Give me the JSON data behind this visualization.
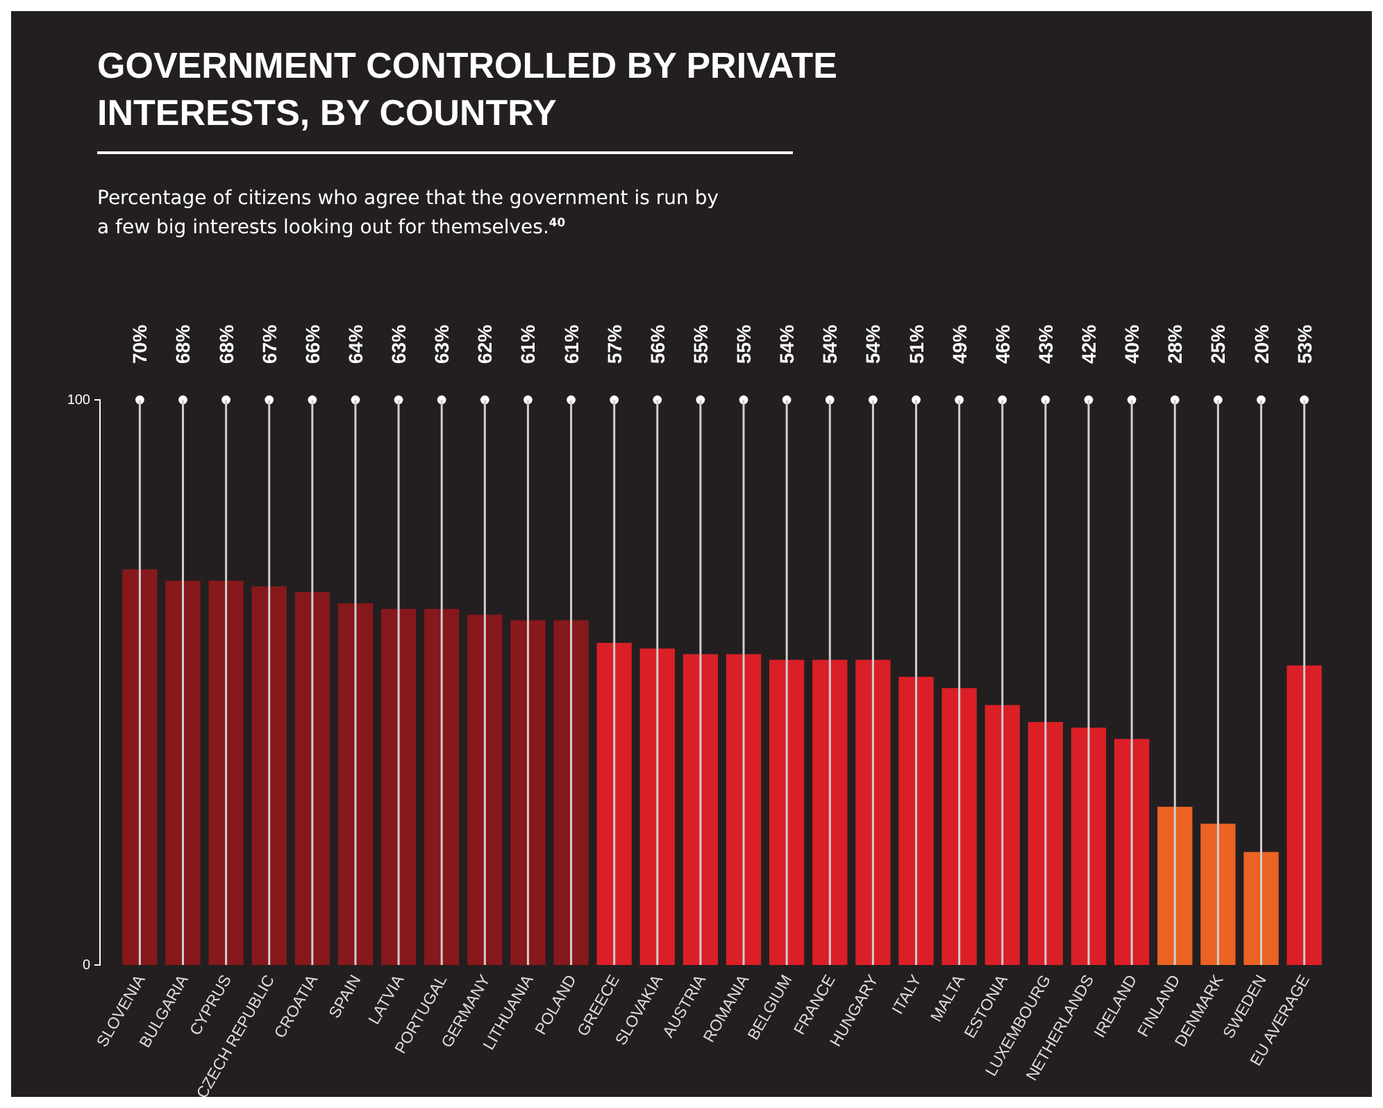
{
  "chart_data": {
    "type": "bar",
    "title": "GOVERNMENT CONTROLLED BY PRIVATE INTERESTS, BY COUNTRY",
    "subtitle": "Percentage of citizens who agree that the government is run by a few big interests looking out for themselves.$^{40}$",
    "categories": [
      "SLOVENIA",
      "BULGARIA",
      "CYPRUS",
      "CZECH REPUBLIC",
      "CROATIA",
      "SPAIN",
      "LATVIA",
      "PORTUGAL",
      "GERMANY",
      "LITHUANIA",
      "POLAND",
      "GREECE",
      "SLOVAKIA",
      "AUSTRIA",
      "ROMANIA",
      "BELGIUM",
      "FRANCE",
      "HUNGARY",
      "ITALY",
      "MALTA",
      "ESTONIA",
      "LUXEMBOURG",
      "NETHERLANDS",
      "IRELAND",
      "FINLAND",
      "DENMARK",
      "SWEDEN",
      "EU AVERAGE"
    ],
    "values": [
      70,
      68,
      68,
      67,
      66,
      64,
      63,
      63,
      62,
      61,
      61,
      57,
      56,
      55,
      55,
      54,
      54,
      54,
      51,
      49,
      46,
      43,
      42,
      40,
      28,
      25,
      20,
      53
    ],
    "value_labels": [
      "70%",
      "68%",
      "68%",
      "67%",
      "66%",
      "64%",
      "63%",
      "63%",
      "62%",
      "61%",
      "61%",
      "57%",
      "56%",
      "55%",
      "55%",
      "54%",
      "54%",
      "54%",
      "51%",
      "49%",
      "46%",
      "43%",
      "42%",
      "40%",
      "28%",
      "25%",
      "20%",
      "53%"
    ],
    "colors": [
      "#8a181c",
      "#8a181c",
      "#8a181c",
      "#8a181c",
      "#8a181c",
      "#8a181c",
      "#8a181c",
      "#8a181c",
      "#8a181c",
      "#8a181c",
      "#8a181c",
      "#e01f27",
      "#e01f27",
      "#e01f27",
      "#e01f27",
      "#e01f27",
      "#e01f27",
      "#e01f27",
      "#e01f27",
      "#e01f27",
      "#e01f27",
      "#e01f27",
      "#e01f27",
      "#e01f27",
      "#f26522",
      "#f26522",
      "#f26522",
      "#e01f27"
    ],
    "ylim": [
      0,
      100
    ],
    "yticks": [
      0,
      100
    ]
  }
}
